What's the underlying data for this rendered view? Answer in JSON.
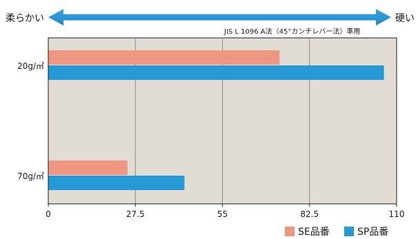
{
  "chart_data": {
    "type": "bar",
    "orientation": "horizontal",
    "left_label": "柔らかい",
    "right_label": "硬い",
    "note": "JIS L 1096 A法（45°カンチレバー法）準用",
    "categories": [
      "20g/㎡",
      "70g/㎡"
    ],
    "series": [
      {
        "name": "SE品番",
        "values": [
          73,
          25
        ],
        "color": "#ed9780"
      },
      {
        "name": "SP品番",
        "values": [
          106,
          43
        ],
        "color": "#2599d6"
      }
    ],
    "xlim": [
      0,
      110
    ],
    "xticks": [
      "0",
      "27.5",
      "55",
      "82.5",
      "110"
    ],
    "grid": true,
    "legend": "bottom-right",
    "plot_bg": "#e2ddd4",
    "arrow_color": "#2b9ad8"
  }
}
